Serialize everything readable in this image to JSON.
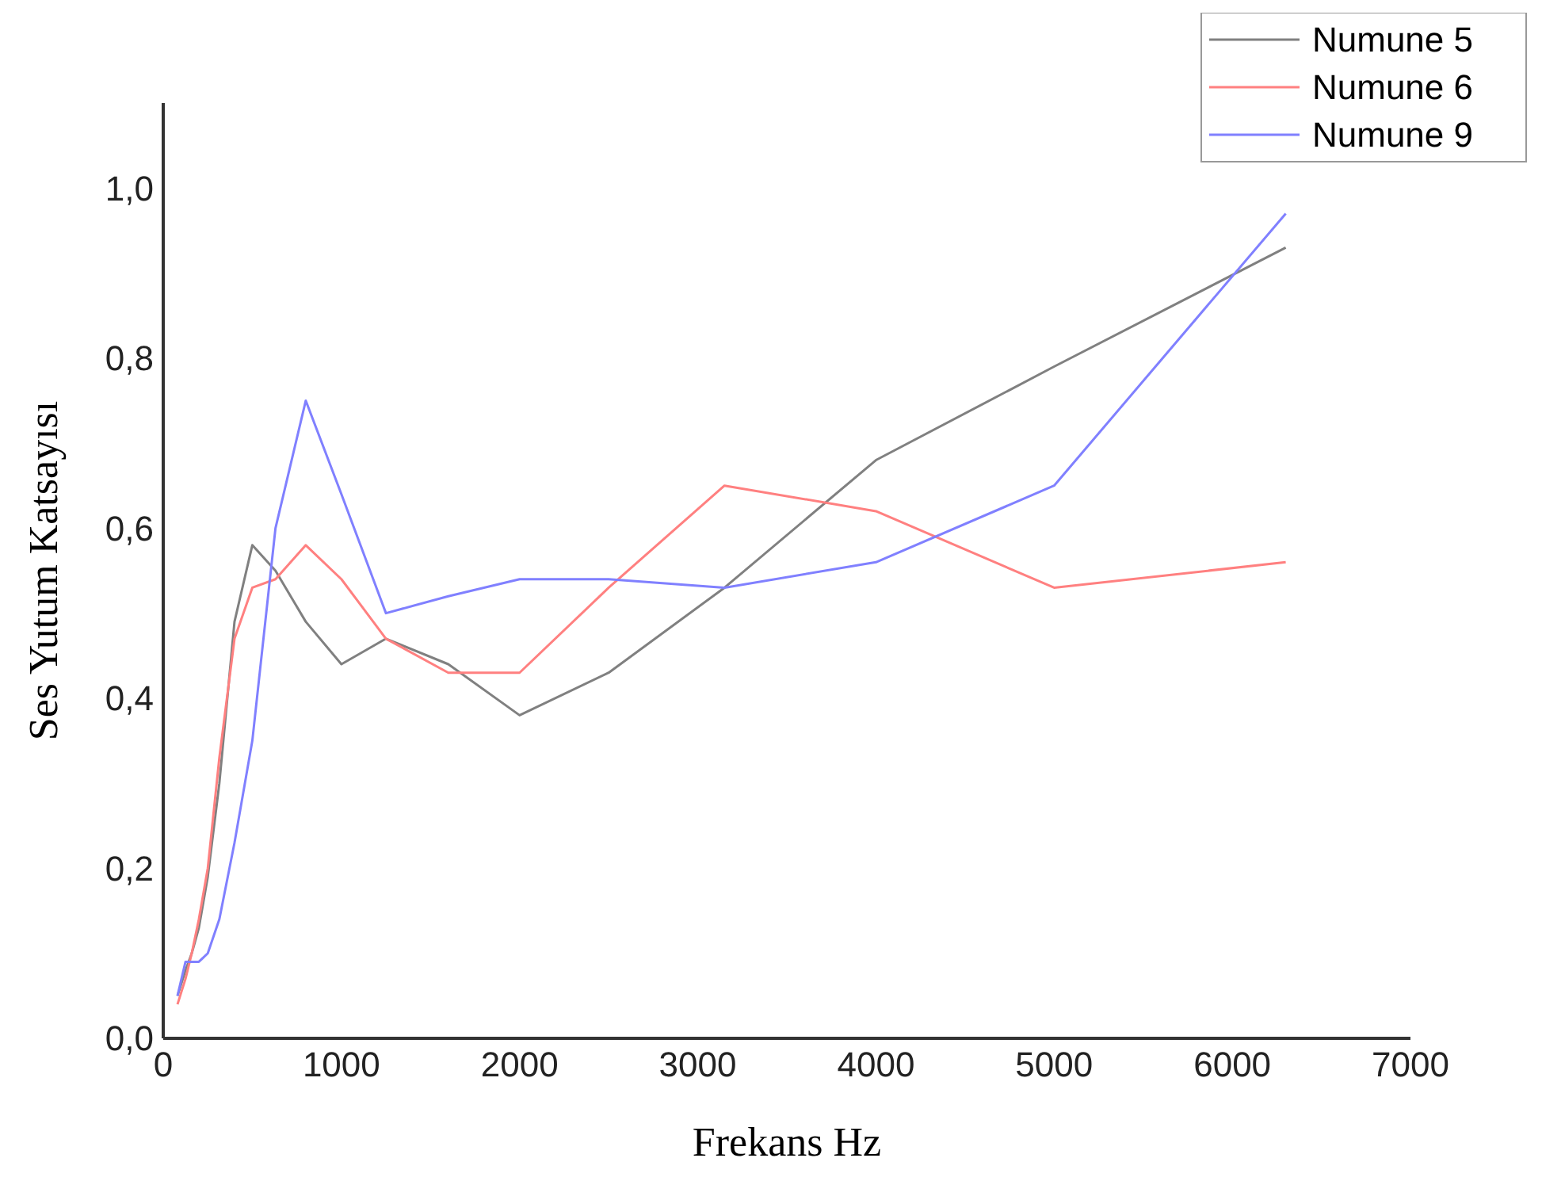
{
  "chart_data": {
    "type": "line",
    "xlabel": "Frekans Hz",
    "ylabel": "Ses Yutum Katsayısı",
    "x": [
      80,
      125,
      160,
      200,
      250,
      315,
      400,
      500,
      630,
      800,
      1000,
      1250,
      1600,
      2000,
      2500,
      3150,
      4000,
      5000,
      6300
    ],
    "series": [
      {
        "name": "Numune 5",
        "color": "#808080",
        "values": [
          0.05,
          0.08,
          0.1,
          0.13,
          0.19,
          0.3,
          0.49,
          0.58,
          0.55,
          0.49,
          0.44,
          0.47,
          0.44,
          0.38,
          0.43,
          0.53,
          0.68,
          0.79,
          0.93
        ]
      },
      {
        "name": "Numune 6",
        "color": "#ff8080",
        "values": [
          0.04,
          0.07,
          0.1,
          0.14,
          0.2,
          0.33,
          0.47,
          0.53,
          0.54,
          0.58,
          0.54,
          0.47,
          0.43,
          0.43,
          0.53,
          0.65,
          0.62,
          0.53,
          0.56
        ]
      },
      {
        "name": "Numune 9",
        "color": "#8080ff",
        "values": [
          0.05,
          0.09,
          0.09,
          0.09,
          0.1,
          0.14,
          0.23,
          0.35,
          0.6,
          0.75,
          0.64,
          0.5,
          0.52,
          0.54,
          0.54,
          0.53,
          0.56,
          0.65,
          0.97
        ]
      }
    ],
    "xlim": [
      0,
      7000
    ],
    "xticks": [
      0,
      1000,
      2000,
      3000,
      4000,
      5000,
      6000,
      7000
    ],
    "ylim": [
      0,
      1.1
    ],
    "yticks": [
      {
        "value": 0,
        "label": "0,0"
      },
      {
        "value": 0.2,
        "label": "0,2"
      },
      {
        "value": 0.4,
        "label": "0,4"
      },
      {
        "value": 0.6,
        "label": "0,6"
      },
      {
        "value": 0.8,
        "label": "0,8"
      },
      {
        "value": 1,
        "label": "1,0"
      }
    ],
    "grid": false,
    "legend": "top right",
    "marker": "none",
    "line_style": "solid"
  }
}
